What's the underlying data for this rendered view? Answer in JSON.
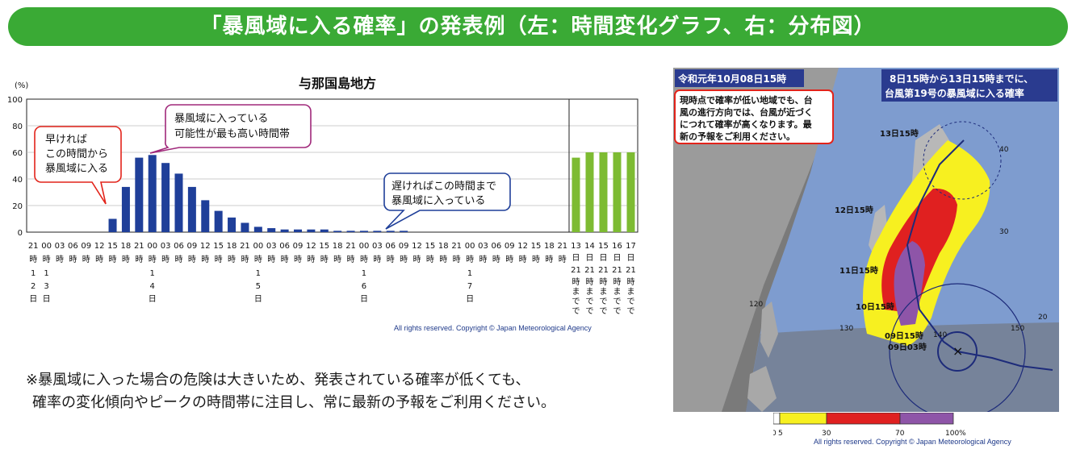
{
  "banner": {
    "title": "「暴風域に入る確率」の発表例（左：時間変化グラフ、右：分布図）"
  },
  "chart_data": {
    "type": "bar",
    "title": "与那国島地方",
    "y_unit": "(%)",
    "ylim": [
      0,
      100
    ],
    "y_ticks": [
      "0",
      "20",
      "40",
      "60",
      "80",
      "100"
    ],
    "grid": true,
    "hourly": {
      "color": "#1f3f99",
      "hour_labels": [
        "21",
        "00",
        "03",
        "06",
        "09",
        "12",
        "15",
        "18",
        "21",
        "00",
        "03",
        "06",
        "09",
        "12",
        "15",
        "18",
        "21",
        "00",
        "03",
        "06",
        "09",
        "12",
        "15",
        "18",
        "21",
        "00",
        "03",
        "06",
        "09",
        "12",
        "15",
        "18",
        "21",
        "00",
        "03",
        "06",
        "09",
        "12",
        "15",
        "18",
        "21"
      ],
      "hour_suffix": "時",
      "day_labels": [
        {
          "index": 0,
          "text": "12日"
        },
        {
          "index": 1,
          "text": "13日"
        },
        {
          "index": 9,
          "text": "14日"
        },
        {
          "index": 17,
          "text": "15日"
        },
        {
          "index": 25,
          "text": "16日"
        },
        {
          "index": 33,
          "text": "17日"
        }
      ],
      "values": [
        0,
        0,
        0,
        0,
        0,
        0,
        10,
        34,
        56,
        58,
        52,
        44,
        34,
        24,
        16,
        11,
        7,
        4,
        3,
        2,
        2,
        2,
        2,
        1,
        1,
        1,
        1,
        1,
        1,
        0,
        0,
        0,
        0,
        0,
        0,
        0,
        0,
        0,
        0,
        0,
        0
      ]
    },
    "cumulative": {
      "color": "#7dbb32",
      "day_numbers": [
        "13",
        "14",
        "15",
        "16",
        "17"
      ],
      "day_suffix": "日",
      "time_label": "21",
      "until_label": "時までで",
      "values": [
        56,
        60,
        60,
        60,
        60
      ]
    },
    "annotations": [
      {
        "text": [
          "早ければ",
          "この時間から",
          "暴風域に入る"
        ],
        "color": "#e2231a"
      },
      {
        "text": [
          "暴風域に入っている",
          "可能性が最も高い時間帯"
        ],
        "color": "#a0287a"
      },
      {
        "text": [
          "遅ければこの時間まで",
          "暴風域に入っている"
        ],
        "color": "#1f3f99"
      }
    ],
    "copyright": "All rights reserved. Copyright © Japan Meteorological Agency"
  },
  "note": {
    "line1": "※暴風域に入った場合の危険は大きいため、発表されている確率が低くても、",
    "line2": "確率の変化傾向やピークの時間帯に注目し、常に最新の予報をご利用ください。"
  },
  "map": {
    "date_label": "令和元年10月08日15時",
    "period_label_1": "8日15時から13日15時までに、",
    "period_label_2": "台風第19号の暴風域に入る確率",
    "warning_text": [
      "現時点で確率が低い地域でも、台",
      "風の進行方向では、台風が近づく",
      "につれて確率が高くなります。最",
      "新の予報をご利用ください。"
    ],
    "track_labels": [
      "13日15時",
      "12日15時",
      "11日15時",
      "10日15時",
      "09日15時",
      "09日03時"
    ],
    "grid_labels": [
      "40",
      "30",
      "20",
      "120",
      "130",
      "140",
      "150"
    ],
    "legend_ticks": [
      "0",
      "5",
      "30",
      "70",
      "100%"
    ],
    "legend_colors": [
      "#ffffff",
      "#f7f020",
      "#e02020",
      "#8e55a8"
    ],
    "copyright": "All rights reserved. Copyright © Japan Meteorological Agency"
  }
}
